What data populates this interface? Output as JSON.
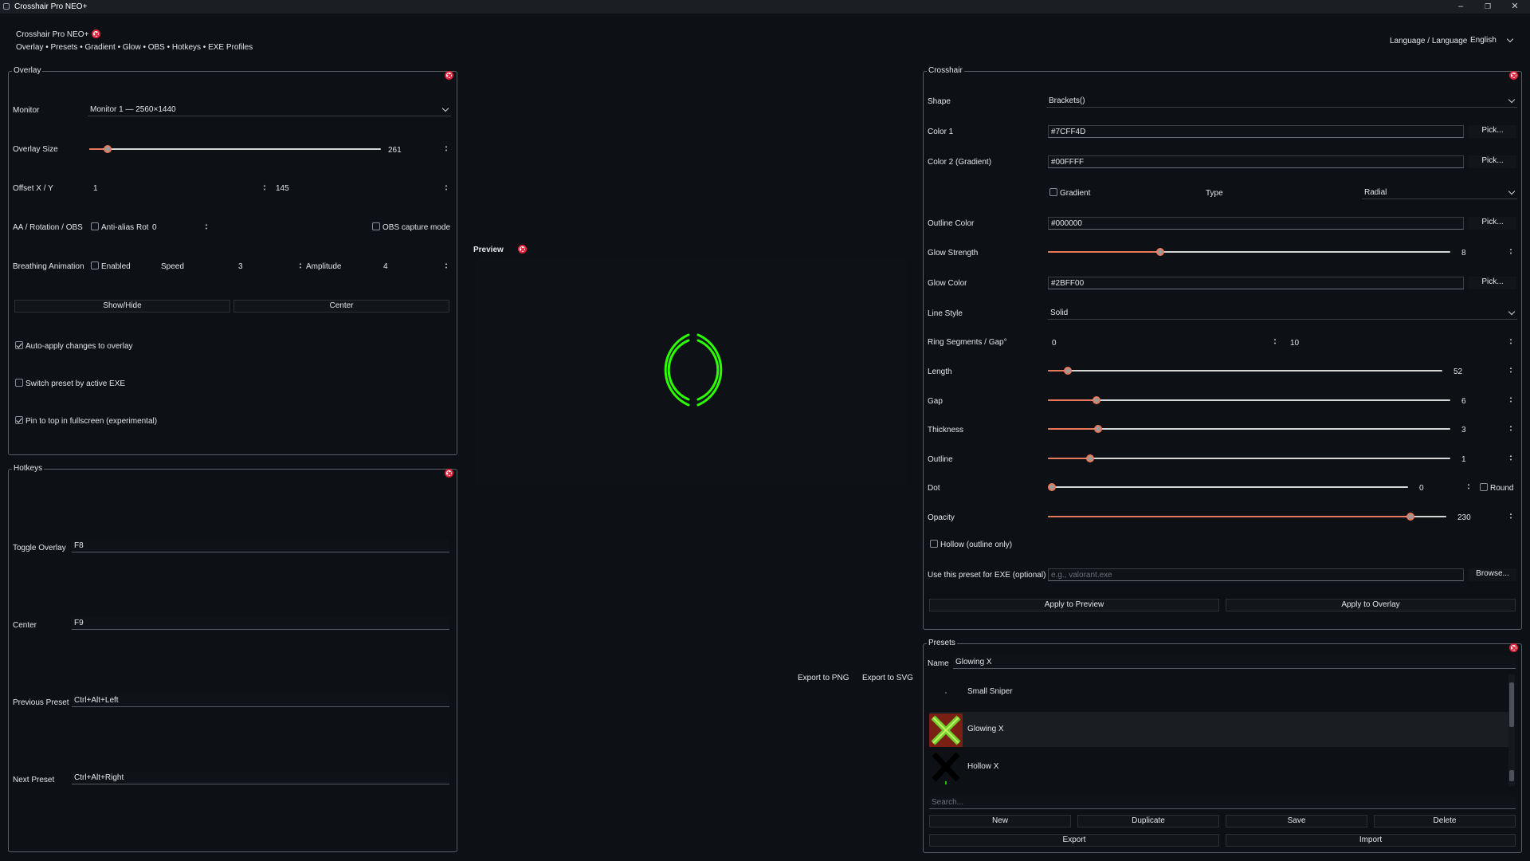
{
  "window": {
    "title": "Crosshair Pro NEO+",
    "minimize": "–",
    "maximize": "❐",
    "close": "✕"
  },
  "header": {
    "app_name": "Crosshair Pro NEO+",
    "subtitle": "Overlay • Presets • Gradient • Glow • OBS • Hotkeys • EXE Profiles",
    "language_label": "Language / Language",
    "language_value": "English"
  },
  "overlay": {
    "title": "Overlay",
    "monitor_label": "Monitor",
    "monitor_value": "Monitor 1 — 2560×1440",
    "size_label": "Overlay Size",
    "size_value": "261",
    "size_fraction": 0.05,
    "offset_label": "Offset X / Y",
    "offset_x": "1",
    "offset_y": "145",
    "aa_label": "AA / Rotation / OBS",
    "antialias_label": "Anti-alias",
    "rot_label": "Rot",
    "rot_value": "0",
    "obs_label": "OBS capture mode",
    "breathing_label": "Breathing Animation",
    "enabled_label": "Enabled",
    "speed_label": "Speed",
    "speed_value": "3",
    "amplitude_label": "Amplitude",
    "amplitude_value": "4",
    "showhide_label": "Show/Hide",
    "center_label": "Center",
    "auto_apply_label": "Auto-apply changes to overlay",
    "switch_preset_label": "Switch preset by active EXE",
    "pin_top_label": "Pin to top in fullscreen (experimental)"
  },
  "hotkeys": {
    "title": "Hotkeys",
    "items": [
      {
        "label": "Toggle Overlay",
        "value": "F8"
      },
      {
        "label": "Center",
        "value": "F9"
      },
      {
        "label": "Previous Preset",
        "value": "Ctrl+Alt+Left"
      },
      {
        "label": "Next Preset",
        "value": "Ctrl+Alt+Right"
      }
    ]
  },
  "preview": {
    "title": "Preview",
    "export_png": "Export to PNG",
    "export_svg": "Export to SVG",
    "crosshair_color": "#2BFF00"
  },
  "crosshair": {
    "title": "Crosshair",
    "shape_label": "Shape",
    "shape_value": "Brackets()",
    "color1_label": "Color 1",
    "color1_value": "#7CFF4D",
    "color2_label": "Color 2 (Gradient)",
    "color2_value": "#00FFFF",
    "pick_label": "Pick...",
    "gradient_label": "Gradient",
    "type_label": "Type",
    "type_value": "Radial",
    "outline_color_label": "Outline Color",
    "outline_color_value": "#000000",
    "glow_strength_label": "Glow Strength",
    "glow_strength_value": "8",
    "glow_color_label": "Glow Color",
    "glow_color_value": "#2BFF00",
    "line_style_label": "Line Style",
    "line_style_value": "Solid",
    "ring_label": "Ring Segments / Gap°",
    "ring_segments": "0",
    "ring_gap": "10",
    "sliders": [
      {
        "label": "Length",
        "value": "52",
        "fraction": 0.04
      },
      {
        "label": "Gap",
        "value": "6",
        "fraction": 0.11
      },
      {
        "label": "Thickness",
        "value": "3",
        "fraction": 0.115
      },
      {
        "label": "Outline",
        "value": "1",
        "fraction": 0.095
      },
      {
        "label": "Dot",
        "value": "0",
        "fraction": 0.0
      },
      {
        "label": "Opacity",
        "value": "230",
        "fraction": 0.9
      }
    ],
    "glow_fraction": 0.27,
    "round_label": "Round",
    "hollow_label": "Hollow (outline only)",
    "exe_label": "Use this preset for EXE (optional)",
    "exe_placeholder": "e.g., valorant.exe",
    "browse_label": "Browse...",
    "apply_preview_label": "Apply to Preview",
    "apply_overlay_label": "Apply to Overlay"
  },
  "presets": {
    "title": "Presets",
    "name_label": "Name",
    "name_value": "Glowing X",
    "items": [
      {
        "name": "Small Sniper"
      },
      {
        "name": "Glowing X"
      },
      {
        "name": "Hollow X"
      }
    ],
    "search_placeholder": "Search...",
    "new_label": "New",
    "duplicate_label": "Duplicate",
    "save_label": "Save",
    "delete_label": "Delete",
    "export_label": "Export",
    "import_label": "Import"
  }
}
